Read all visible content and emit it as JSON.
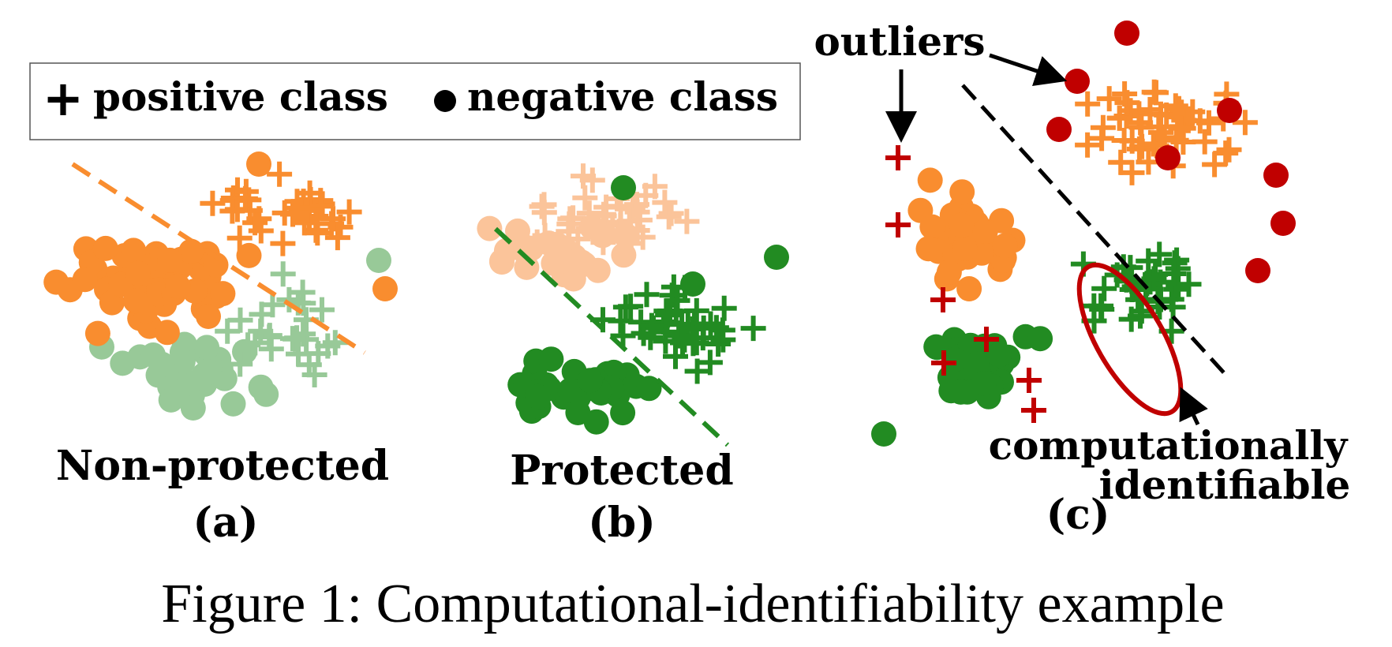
{
  "legend": {
    "positive_symbol": "+",
    "positive_label": "positive class",
    "negative_label": "negative class"
  },
  "panels": [
    {
      "name": "Non-protected",
      "label": "(a)"
    },
    {
      "name": "Protected",
      "label": "(b)"
    },
    {
      "name": "",
      "label": "(c)"
    }
  ],
  "annotations": {
    "outliers": "outliers",
    "comp_line1": "computationally",
    "comp_line2": "identifiable"
  },
  "caption": "Figure 1: Computational-identifiability example",
  "colors": {
    "orange": "#f98d2f",
    "light_orange": "#fbc49a",
    "green": "#228b22",
    "light_green": "#98c998",
    "red": "#c00000",
    "black": "#000000"
  },
  "chart_data": [
    {
      "type": "scatter",
      "title": "Non-protected",
      "series": [
        {
          "name": "positive class",
          "marker": "plus"
        },
        {
          "name": "negative class",
          "marker": "circle"
        }
      ],
      "decision_boundary": "dashed orange line"
    },
    {
      "type": "scatter",
      "title": "Protected",
      "series": [
        {
          "name": "positive class",
          "marker": "plus"
        },
        {
          "name": "negative class",
          "marker": "circle"
        }
      ],
      "decision_boundary": "dashed green line"
    },
    {
      "type": "scatter",
      "title": "",
      "series": [
        {
          "name": "positive class",
          "marker": "plus"
        },
        {
          "name": "negative class",
          "marker": "circle"
        }
      ],
      "decision_boundary": "dashed black line",
      "annotations": [
        "outliers",
        "computationally identifiable"
      ]
    }
  ]
}
